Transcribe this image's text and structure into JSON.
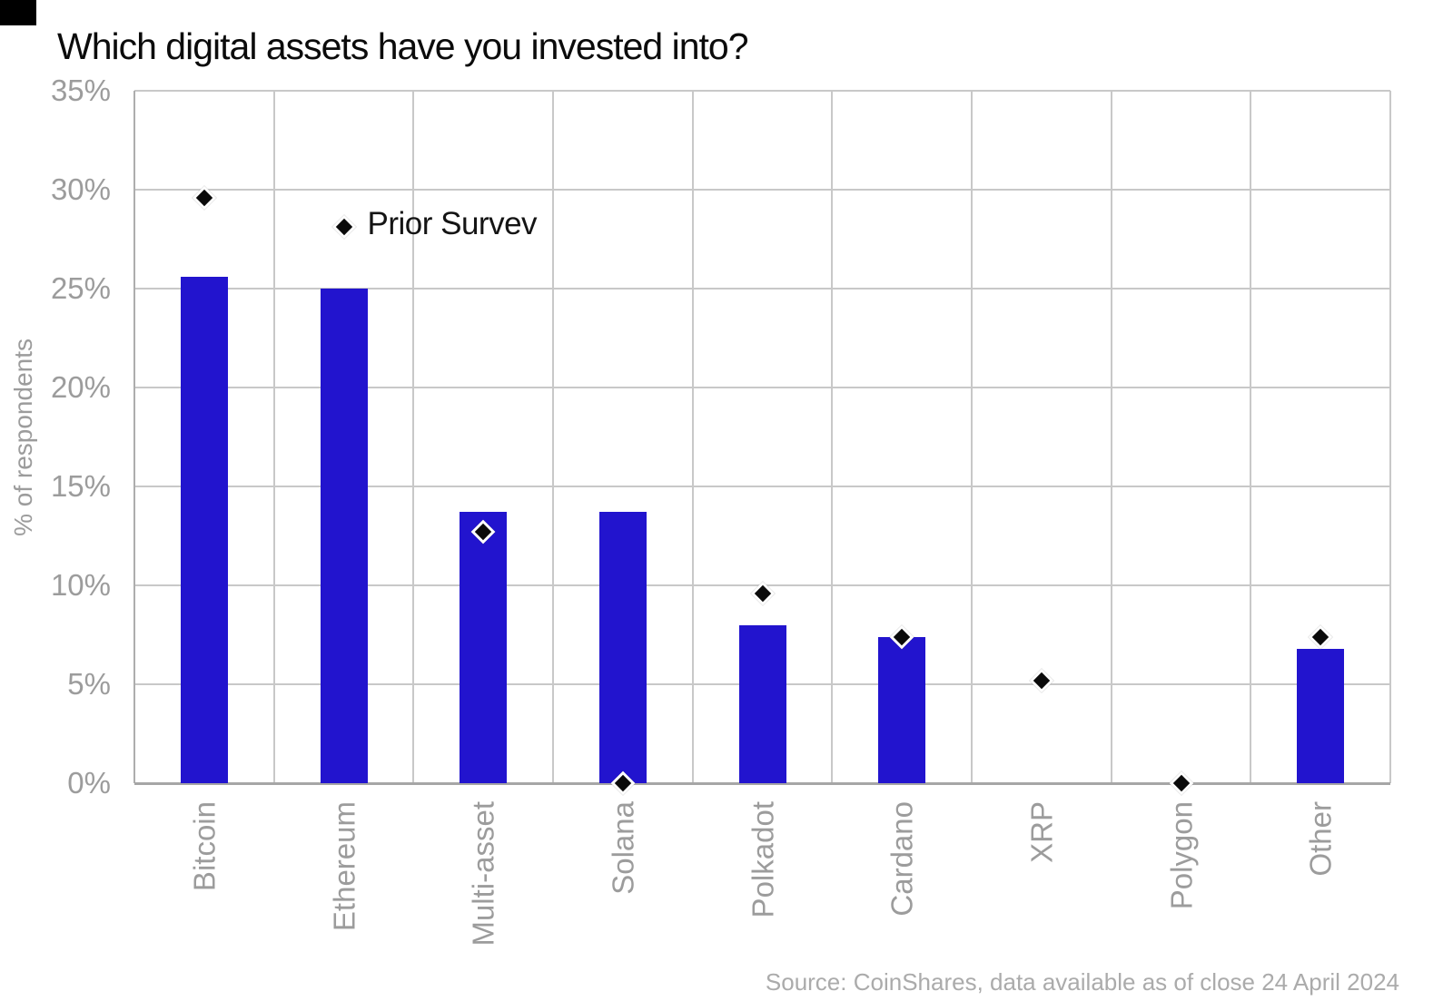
{
  "chart_data": {
    "type": "bar",
    "title": "Which digital assets have you invested into?",
    "ylabel": "% of respondents",
    "xlabel": "",
    "categories": [
      "Bitcoin",
      "Ethereum",
      "Multi-asset",
      "Solana",
      "Polkadot",
      "Cardano",
      "XRP",
      "Polygon",
      "Other"
    ],
    "series": [
      {
        "role": "bars",
        "values": [
          25.6,
          25.0,
          13.7,
          13.7,
          8.0,
          7.4,
          0,
          0,
          6.8
        ]
      },
      {
        "role": "markers",
        "name": "Prior Survev",
        "marker": "diamond",
        "values": [
          29.6,
          28.1,
          12.7,
          0,
          9.6,
          7.4,
          5.2,
          0,
          7.4
        ]
      }
    ],
    "annotation": {
      "text": "Prior Survev",
      "attached_to": "Ethereum"
    },
    "ylim": [
      0,
      35
    ],
    "yticks": [
      {
        "label": "35%",
        "value": 35
      },
      {
        "label": "30%",
        "value": 30
      },
      {
        "label": "25%",
        "value": 25
      },
      {
        "label": "20%",
        "value": 20
      },
      {
        "label": "15%",
        "value": 15
      },
      {
        "label": "10%",
        "value": 10
      },
      {
        "label": "5%",
        "value": 5
      },
      {
        "label": "0%",
        "value": 0
      }
    ],
    "grid": true,
    "bar_color": "#2214CE",
    "marker_color": "#0A0A0A",
    "source": "Source: CoinShares, data available as of close 24 April 2024"
  }
}
